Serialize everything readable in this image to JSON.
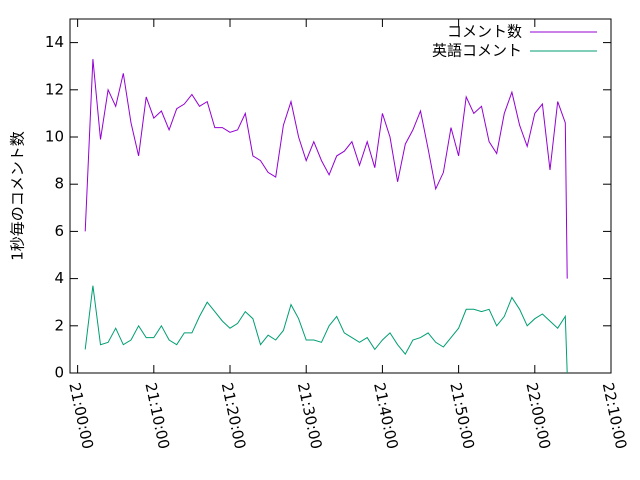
{
  "chart_data": {
    "type": "line",
    "y_label": "1秒毎のコメント数",
    "x": [
      "21:01:00",
      "21:02:00",
      "21:03:00",
      "21:04:00",
      "21:05:00",
      "21:06:00",
      "21:07:00",
      "21:08:00",
      "21:09:00",
      "21:10:00",
      "21:11:00",
      "21:12:00",
      "21:13:00",
      "21:14:00",
      "21:15:00",
      "21:16:00",
      "21:17:00",
      "21:18:00",
      "21:19:00",
      "21:20:00",
      "21:21:00",
      "21:22:00",
      "21:23:00",
      "21:24:00",
      "21:25:00",
      "21:26:00",
      "21:27:00",
      "21:28:00",
      "21:29:00",
      "21:30:00",
      "21:31:00",
      "21:32:00",
      "21:33:00",
      "21:34:00",
      "21:35:00",
      "21:36:00",
      "21:37:00",
      "21:38:00",
      "21:39:00",
      "21:40:00",
      "21:41:00",
      "21:42:00",
      "21:43:00",
      "21:44:00",
      "21:45:00",
      "21:46:00",
      "21:47:00",
      "21:48:00",
      "21:49:00",
      "21:50:00",
      "21:51:00",
      "21:52:00",
      "21:53:00",
      "21:54:00",
      "21:55:00",
      "21:56:00",
      "21:57:00",
      "21:58:00",
      "21:59:00",
      "22:00:00",
      "22:01:00",
      "22:02:00",
      "22:03:00",
      "22:04:00",
      "22:04:15"
    ],
    "series": [
      {
        "name": "コメント数",
        "color": "#9400d3",
        "values": [
          6.0,
          13.3,
          9.9,
          12.0,
          11.3,
          12.7,
          10.6,
          9.2,
          11.7,
          10.8,
          11.1,
          10.3,
          11.2,
          11.4,
          11.8,
          11.3,
          11.5,
          10.4,
          10.4,
          10.2,
          10.3,
          11.0,
          9.2,
          9.0,
          8.5,
          8.3,
          10.5,
          11.5,
          10.0,
          9.0,
          9.8,
          9.0,
          8.4,
          9.2,
          9.4,
          9.8,
          8.8,
          9.8,
          8.7,
          11.0,
          10.0,
          8.1,
          9.7,
          10.3,
          11.1,
          9.5,
          7.8,
          8.5,
          10.4,
          9.2,
          11.7,
          11.0,
          11.3,
          9.8,
          9.3,
          11.0,
          11.9,
          10.5,
          9.6,
          11.0,
          11.4,
          8.6,
          11.5,
          10.6,
          4.0
        ]
      },
      {
        "name": "英語コメント",
        "color": "#009e73",
        "values": [
          1.0,
          3.7,
          1.2,
          1.3,
          1.9,
          1.2,
          1.4,
          2.0,
          1.5,
          1.5,
          2.0,
          1.4,
          1.2,
          1.7,
          1.7,
          2.4,
          3.0,
          2.6,
          2.2,
          1.9,
          2.1,
          2.6,
          2.3,
          1.2,
          1.6,
          1.4,
          1.8,
          2.9,
          2.3,
          1.4,
          1.4,
          1.3,
          2.0,
          2.4,
          1.7,
          1.5,
          1.3,
          1.5,
          1.0,
          1.4,
          1.7,
          1.2,
          0.8,
          1.4,
          1.5,
          1.7,
          1.3,
          1.1,
          1.5,
          1.9,
          2.7,
          2.7,
          2.6,
          2.7,
          2.0,
          2.4,
          3.2,
          2.7,
          2.0,
          2.3,
          2.5,
          2.2,
          1.9,
          2.4,
          0
        ]
      }
    ],
    "xlim": [
      "20:59:00",
      "22:10:00"
    ],
    "xticks": [
      "21:00:00",
      "21:10:00",
      "21:20:00",
      "21:30:00",
      "21:40:00",
      "21:50:00",
      "22:00:00",
      "22:10:00"
    ],
    "ylim": [
      0,
      15
    ],
    "yticks": [
      0,
      2,
      4,
      6,
      8,
      10,
      12,
      14
    ],
    "legend": "top-right"
  }
}
